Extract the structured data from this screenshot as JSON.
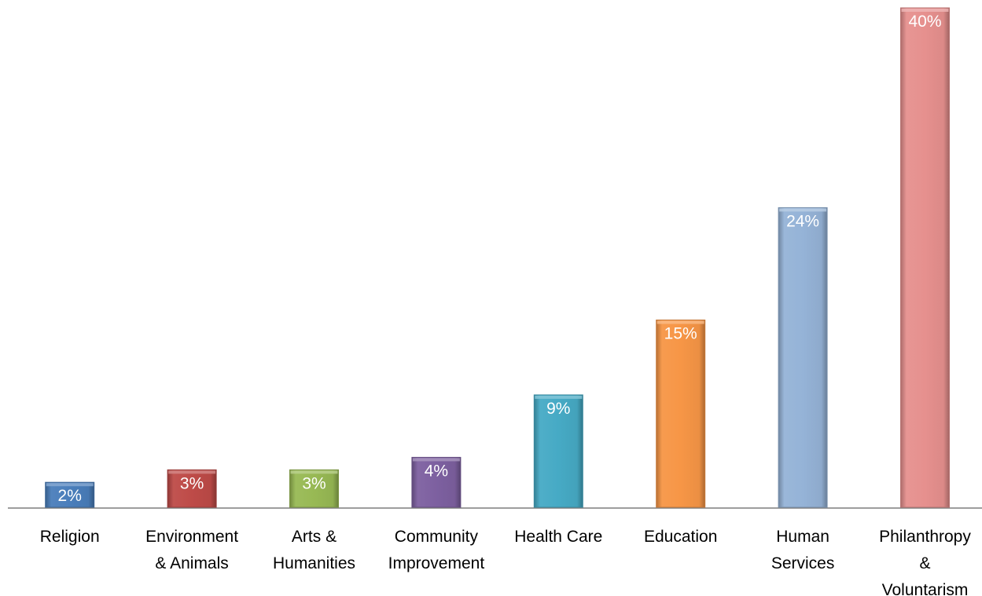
{
  "chart_data": {
    "type": "bar",
    "categories": [
      "Religion",
      "Environment & Animals",
      "Arts & Humanities",
      "Community Improvement",
      "Health Care",
      "Education",
      "Human Services",
      "Philanthropy & Voluntarism"
    ],
    "values": [
      2,
      3,
      3,
      4,
      9,
      15,
      24,
      40
    ],
    "data_labels": [
      "2%",
      "3%",
      "3%",
      "4%",
      "9%",
      "15%",
      "24%",
      "40%"
    ],
    "unit": "%",
    "ylim": [
      0,
      40
    ],
    "grid": false,
    "legend": "none",
    "title": "",
    "xlabel": "",
    "ylabel": "",
    "colors": [
      "#4a7ebb",
      "#be4b48",
      "#98b954",
      "#7d60a0",
      "#46aac5",
      "#f79646",
      "#95b3d7",
      "#e6908e"
    ]
  }
}
